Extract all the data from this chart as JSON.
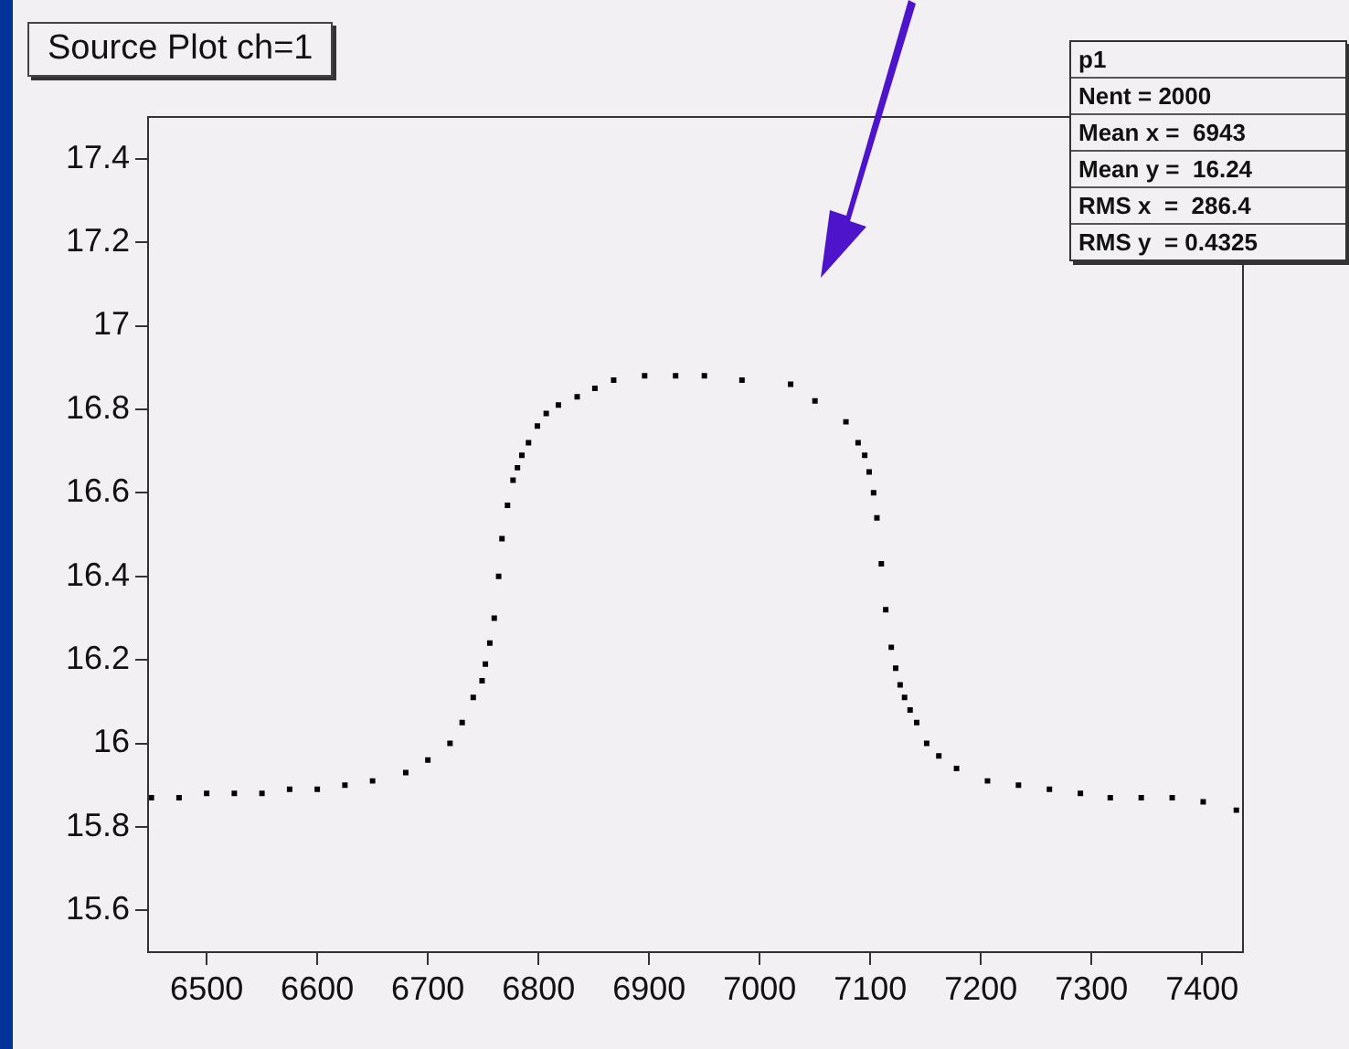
{
  "chart_data": {
    "type": "scatter",
    "title": "Source Plot ch=1",
    "annotations": [
      "p1",
      "Nent = 2000",
      "Mean x =  6943",
      "Mean y =  16.24",
      "RMS x  =  286.4",
      "RMS y  = 0.4325"
    ],
    "x": [
      6450,
      6475,
      6500,
      6525,
      6550,
      6575,
      6600,
      6625,
      6650,
      6680,
      6700,
      6720,
      6731,
      6741,
      6749,
      6752,
      6756,
      6760,
      6764,
      6767,
      6772,
      6777,
      6781,
      6785,
      6791,
      6799,
      6807,
      6818,
      6835,
      6851,
      6868,
      6896,
      6924,
      6950,
      6984,
      7028,
      7050,
      7078,
      7089,
      7095,
      7099,
      7103,
      7106,
      7110,
      7114,
      7119,
      7123,
      7127,
      7131,
      7136,
      7142,
      7151,
      7162,
      7178,
      7206,
      7234,
      7262,
      7290,
      7317,
      7345,
      7373,
      7401,
      7431
    ],
    "series": [
      {
        "color": "#000000",
        "values": [
          15.87,
          15.87,
          15.88,
          15.88,
          15.88,
          15.89,
          15.89,
          15.9,
          15.91,
          15.93,
          15.96,
          16.0,
          16.05,
          16.11,
          16.15,
          16.19,
          16.24,
          16.3,
          16.4,
          16.49,
          16.57,
          16.63,
          16.66,
          16.69,
          16.72,
          16.76,
          16.79,
          16.81,
          16.83,
          16.85,
          16.87,
          16.88,
          16.88,
          16.88,
          16.87,
          16.86,
          16.82,
          16.77,
          16.72,
          16.69,
          16.65,
          16.6,
          16.54,
          16.43,
          16.32,
          16.23,
          16.18,
          16.14,
          16.11,
          16.08,
          16.05,
          16.0,
          15.97,
          15.94,
          15.91,
          15.9,
          15.89,
          15.88,
          15.87,
          15.87,
          15.87,
          15.86,
          15.84
        ]
      }
    ],
    "xlim": [
      6447,
      7437
    ],
    "ylim": [
      15.5,
      17.5
    ],
    "xticks": [
      6500,
      6600,
      6700,
      6800,
      6900,
      7000,
      7100,
      7200,
      7300,
      7400
    ],
    "yticks": [
      15.6,
      15.8,
      16,
      16.2,
      16.4,
      16.6,
      16.8,
      17,
      17.2,
      17.4
    ],
    "grid": false,
    "legend": false,
    "marker": "square"
  }
}
